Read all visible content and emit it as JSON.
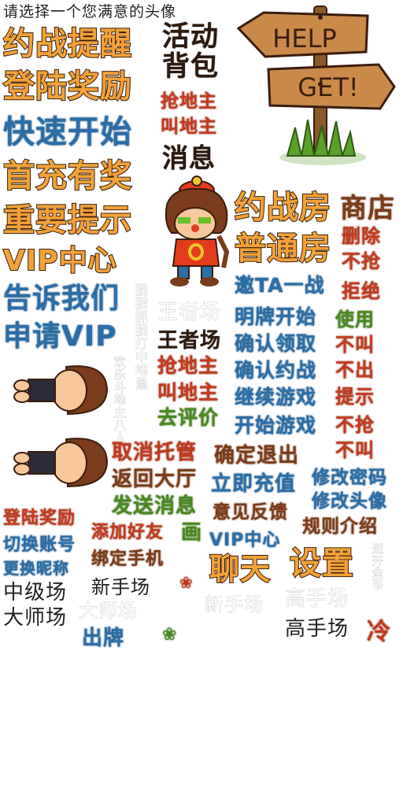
{
  "header": {
    "prompt": "请选择一个您满意的头像"
  },
  "sign": {
    "top": "HELP",
    "bottom": "GET!"
  },
  "labels": {
    "battle_reminder": "约战提醒",
    "activity": "活动",
    "backpack": "背包",
    "login_reward": "登陆奖励",
    "grab_lord_1": "抢地主",
    "call_lord_1": "叫地主",
    "quick_start": "快速开始",
    "message": "消息",
    "first_recharge": "首充有奖",
    "important_tip": "重要提示",
    "vip_center": "VIP中心",
    "tell_us": "告诉我们",
    "apply_vip": "申请VIP",
    "battle_room": "约战房",
    "shop": "商店",
    "delete": "删除",
    "normal_room": "普通房",
    "no_grab_1": "不抢",
    "invite_ta": "邀TA一战",
    "refuse": "拒绝",
    "open_card_start": "明牌开始",
    "use": "使用",
    "king_arena_grey": "王者场",
    "king_arena": "王者场",
    "confirm_claim": "确认领取",
    "no_call_1": "不叫",
    "grab_lord_2": "抢地主",
    "confirm_battle": "确认约战",
    "no_play": "不出",
    "call_lord_2": "叫地主",
    "continue_game": "继续游戏",
    "hint": "提示",
    "go_rate": "去评价",
    "start_game": "开始游戏",
    "no_grab_2": "不抢",
    "no_call_2": "不叫",
    "cancel_auto": "取消托管",
    "confirm_exit": "确定退出",
    "return_hall": "返回大厅",
    "recharge_now": "立即充值",
    "change_password": "修改密码",
    "change_avatar": "修改头像",
    "send_message": "发送消息",
    "feedback": "意见反馈",
    "rules_intro": "规则介绍",
    "login_reward_small": "登陆奖励",
    "switch_account": "切换账号",
    "add_friend": "添加好友",
    "draw": "画",
    "vip_center_small": "VIP中心",
    "change_nickname": "更换昵称",
    "bind_phone": "绑定手机",
    "chat": "聊天",
    "settings": "设置",
    "mid_arena": "中级场",
    "novice_arena": "新手场",
    "novice_arena_grey": "新手场",
    "high_arena_grey": "高手场",
    "master_arena": "大师场",
    "master_arena_grey": "大师场",
    "play_card": "出牌",
    "high_arena": "高手场",
    "vertical_grey_1": "猫猫抓猫打中地鼠",
    "vertical_grey_2": "欢乐斗地主八人",
    "vertical_red": "冷",
    "vertical_grey_3": "送开金币"
  }
}
